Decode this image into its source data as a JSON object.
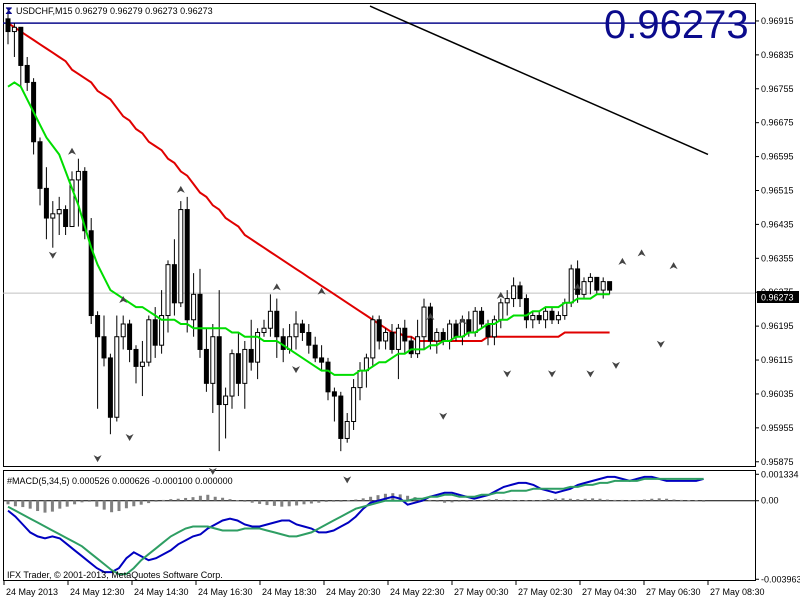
{
  "header": {
    "symbol_line": "USDCHF,M15  0.96279 0.96279 0.96273 0.96273",
    "big_price": "0.96273"
  },
  "macd": {
    "label": "#MACD(5,34,5) 0.000526 0.000626 -0.000100 0.000000",
    "axis_labels": [
      "0.001334",
      "0.00",
      "-0.003963"
    ]
  },
  "footer": {
    "copyright": "IFX Trader, © 2001-2013, MetaQuotes Software Corp."
  },
  "chart_data": {
    "type": "candlestick",
    "price_axis": {
      "ticks": [
        0.96915,
        0.96835,
        0.96755,
        0.96675,
        0.96595,
        0.96515,
        0.96435,
        0.96355,
        0.96275,
        0.96195,
        0.96115,
        0.96035,
        0.95955,
        0.95875
      ],
      "ylim": [
        0.95865,
        0.96955
      ],
      "current_price": 0.96273,
      "current_label": "0.96273"
    },
    "time_labels": [
      "24 May 2013",
      "24 May 12:30",
      "24 May 14:30",
      "24 May 16:30",
      "24 May 18:30",
      "24 May 20:30",
      "24 May 22:30",
      "27 May 00:30",
      "27 May 02:30",
      "27 May 04:30",
      "27 May 06:30",
      "27 May 08:30"
    ],
    "candles": [
      [
        0.9692,
        0.9694,
        0.9686,
        0.9689
      ],
      [
        0.9689,
        0.9691,
        0.9683,
        0.969
      ],
      [
        0.969,
        0.969,
        0.9676,
        0.9681
      ],
      [
        0.9681,
        0.9683,
        0.9675,
        0.9677
      ],
      [
        0.9677,
        0.9678,
        0.966,
        0.9663
      ],
      [
        0.9663,
        0.9664,
        0.9648,
        0.9652
      ],
      [
        0.9652,
        0.9657,
        0.964,
        0.9645
      ],
      [
        0.9645,
        0.9649,
        0.9638,
        0.9646
      ],
      [
        0.9646,
        0.965,
        0.9641,
        0.9647
      ],
      [
        0.9647,
        0.9648,
        0.9641,
        0.9643
      ],
      [
        0.9643,
        0.9656,
        0.9643,
        0.9654
      ],
      [
        0.9654,
        0.9659,
        0.9643,
        0.9656
      ],
      [
        0.9656,
        0.9657,
        0.964,
        0.9642
      ],
      [
        0.9642,
        0.9645,
        0.962,
        0.9622
      ],
      [
        0.9622,
        0.9623,
        0.96,
        0.9617
      ],
      [
        0.9617,
        0.9622,
        0.961,
        0.9612
      ],
      [
        0.9612,
        0.9613,
        0.9594,
        0.9598
      ],
      [
        0.9598,
        0.9622,
        0.9597,
        0.9617
      ],
      [
        0.9617,
        0.9622,
        0.9614,
        0.962
      ],
      [
        0.962,
        0.9621,
        0.9611,
        0.9614
      ],
      [
        0.9614,
        0.9615,
        0.9606,
        0.961
      ],
      [
        0.961,
        0.9616,
        0.9603,
        0.9611
      ],
      [
        0.9611,
        0.9622,
        0.961,
        0.9621
      ],
      [
        0.9621,
        0.9624,
        0.9612,
        0.9615
      ],
      [
        0.9615,
        0.9628,
        0.9613,
        0.9622
      ],
      [
        0.9622,
        0.9635,
        0.9618,
        0.9634
      ],
      [
        0.9634,
        0.964,
        0.9622,
        0.9625
      ],
      [
        0.9625,
        0.9649,
        0.9624,
        0.9647
      ],
      [
        0.9647,
        0.965,
        0.9618,
        0.9621
      ],
      [
        0.9621,
        0.9632,
        0.9617,
        0.9627
      ],
      [
        0.9627,
        0.9633,
        0.9612,
        0.9614
      ],
      [
        0.9614,
        0.9619,
        0.9604,
        0.9606
      ],
      [
        0.9606,
        0.962,
        0.9599,
        0.9617
      ],
      [
        0.9617,
        0.9628,
        0.959,
        0.9601
      ],
      [
        0.9601,
        0.9605,
        0.9593,
        0.9603
      ],
      [
        0.9603,
        0.9614,
        0.96,
        0.9613
      ],
      [
        0.9613,
        0.9618,
        0.9603,
        0.9606
      ],
      [
        0.9606,
        0.9616,
        0.96,
        0.9614
      ],
      [
        0.9614,
        0.9621,
        0.9609,
        0.9611
      ],
      [
        0.9611,
        0.9619,
        0.9607,
        0.9618
      ],
      [
        0.9618,
        0.9621,
        0.9617,
        0.9619
      ],
      [
        0.9619,
        0.9627,
        0.9617,
        0.9623
      ],
      [
        0.9623,
        0.9626,
        0.9612,
        0.9617
      ],
      [
        0.9617,
        0.9619,
        0.9611,
        0.9614
      ],
      [
        0.9614,
        0.962,
        0.9613,
        0.9617
      ],
      [
        0.9617,
        0.9623,
        0.9614,
        0.962
      ],
      [
        0.962,
        0.9621,
        0.9616,
        0.9618
      ],
      [
        0.9618,
        0.962,
        0.9613,
        0.9615
      ],
      [
        0.9615,
        0.9617,
        0.9611,
        0.9612
      ],
      [
        0.9612,
        0.9615,
        0.9609,
        0.9611
      ],
      [
        0.9611,
        0.9612,
        0.9602,
        0.9604
      ],
      [
        0.9604,
        0.9605,
        0.9597,
        0.9603
      ],
      [
        0.9603,
        0.9604,
        0.959,
        0.9593
      ],
      [
        0.9593,
        0.9599,
        0.9592,
        0.9597
      ],
      [
        0.9597,
        0.9607,
        0.9595,
        0.9605
      ],
      [
        0.9605,
        0.9611,
        0.9602,
        0.9609
      ],
      [
        0.9609,
        0.9613,
        0.9605,
        0.9612
      ],
      [
        0.9612,
        0.9622,
        0.961,
        0.9621
      ],
      [
        0.9621,
        0.9622,
        0.9614,
        0.9616
      ],
      [
        0.9616,
        0.9619,
        0.9614,
        0.9618
      ],
      [
        0.9618,
        0.962,
        0.9613,
        0.9614
      ],
      [
        0.9614,
        0.962,
        0.9607,
        0.9619
      ],
      [
        0.9619,
        0.9621,
        0.9613,
        0.9616
      ],
      [
        0.9616,
        0.9617,
        0.9612,
        0.9613
      ],
      [
        0.9613,
        0.9621,
        0.9612,
        0.9617
      ],
      [
        0.9617,
        0.9626,
        0.9614,
        0.9624
      ],
      [
        0.9624,
        0.9625,
        0.9614,
        0.9616
      ],
      [
        0.9616,
        0.9619,
        0.9613,
        0.9618
      ],
      [
        0.9618,
        0.9619,
        0.9615,
        0.9616
      ],
      [
        0.9616,
        0.9621,
        0.9614,
        0.962
      ],
      [
        0.962,
        0.9621,
        0.9616,
        0.9617
      ],
      [
        0.9617,
        0.9622,
        0.9615,
        0.9621
      ],
      [
        0.9621,
        0.9623,
        0.9617,
        0.9618
      ],
      [
        0.9618,
        0.9624,
        0.9617,
        0.9623
      ],
      [
        0.9623,
        0.9624,
        0.9619,
        0.962
      ],
      [
        0.962,
        0.9621,
        0.9615,
        0.9617
      ],
      [
        0.9617,
        0.9622,
        0.9615,
        0.9621
      ],
      [
        0.9621,
        0.9626,
        0.9619,
        0.9625
      ],
      [
        0.9625,
        0.9628,
        0.9622,
        0.9626
      ],
      [
        0.9626,
        0.9631,
        0.9624,
        0.9629
      ],
      [
        0.9629,
        0.963,
        0.9624,
        0.9626
      ],
      [
        0.9626,
        0.9627,
        0.9619,
        0.9621
      ],
      [
        0.9621,
        0.9623,
        0.9619,
        0.9622
      ],
      [
        0.9622,
        0.9623,
        0.962,
        0.9621
      ],
      [
        0.9621,
        0.9624,
        0.9619,
        0.9623
      ],
      [
        0.9623,
        0.9624,
        0.962,
        0.9621
      ],
      [
        0.9621,
        0.9623,
        0.962,
        0.9622
      ],
      [
        0.9622,
        0.9626,
        0.9621,
        0.9625
      ],
      [
        0.9625,
        0.9634,
        0.9624,
        0.9633
      ],
      [
        0.9633,
        0.9635,
        0.9625,
        0.9627
      ],
      [
        0.9627,
        0.9631,
        0.9626,
        0.963
      ],
      [
        0.963,
        0.9632,
        0.9627,
        0.9631
      ],
      [
        0.9631,
        0.9631,
        0.9627,
        0.9628
      ],
      [
        0.9628,
        0.9631,
        0.9626,
        0.963
      ],
      [
        0.963,
        0.963,
        0.9627,
        0.9628
      ]
    ],
    "ma_fast": [
      0.9676,
      0.9677,
      0.9676,
      0.9673,
      0.967,
      0.9667,
      0.9664,
      0.9662,
      0.966,
      0.9656,
      0.9652,
      0.9648,
      0.9643,
      0.9638,
      0.9634,
      0.9631,
      0.9628,
      0.9627,
      0.9626,
      0.9625,
      0.9624,
      0.9624,
      0.9623,
      0.9622,
      0.9621,
      0.9621,
      0.9621,
      0.962,
      0.962,
      0.9619,
      0.9619,
      0.9619,
      0.9619,
      0.9619,
      0.9619,
      0.9618,
      0.9618,
      0.9617,
      0.9617,
      0.9617,
      0.9616,
      0.9616,
      0.9616,
      0.9615,
      0.9614,
      0.9613,
      0.9612,
      0.9611,
      0.961,
      0.9609,
      0.9609,
      0.9608,
      0.9608,
      0.9608,
      0.9608,
      0.9609,
      0.9609,
      0.961,
      0.9611,
      0.9611,
      0.9612,
      0.9613,
      0.9613,
      0.9614,
      0.9614,
      0.9614,
      0.9615,
      0.9615,
      0.9616,
      0.9616,
      0.9617,
      0.9617,
      0.9618,
      0.9618,
      0.9619,
      0.962,
      0.962,
      0.9621,
      0.9621,
      0.9622,
      0.9622,
      0.9622,
      0.9623,
      0.9623,
      0.9624,
      0.9624,
      0.9624,
      0.9625,
      0.9625,
      0.9626,
      0.9626,
      0.9626,
      0.9627,
      0.9627,
      0.9627
    ],
    "ma_slow": [
      0.9691,
      0.969,
      0.9689,
      0.9688,
      0.9687,
      0.9686,
      0.9685,
      0.9684,
      0.9683,
      0.9682,
      0.968,
      0.9679,
      0.9678,
      0.9677,
      0.9675,
      0.9674,
      0.9673,
      0.9671,
      0.9669,
      0.9668,
      0.9666,
      0.9665,
      0.9663,
      0.9662,
      0.9661,
      0.9659,
      0.9658,
      0.9656,
      0.9655,
      0.9653,
      0.9651,
      0.965,
      0.9648,
      0.9647,
      0.9645,
      0.9644,
      0.9643,
      0.9641,
      0.964,
      0.9639,
      0.9638,
      0.9637,
      0.9636,
      0.9635,
      0.9634,
      0.9633,
      0.9632,
      0.9631,
      0.963,
      0.9629,
      0.9628,
      0.9627,
      0.9626,
      0.9625,
      0.9624,
      0.9623,
      0.9622,
      0.9621,
      0.962,
      0.9619,
      0.9618,
      0.9618,
      0.9617,
      0.9617,
      0.9616,
      0.9616,
      0.9616,
      0.9616,
      0.9616,
      0.9616,
      0.9616,
      0.9616,
      0.9616,
      0.9616,
      0.9616,
      0.9617,
      0.9617,
      0.9617,
      0.9617,
      0.9617,
      0.9617,
      0.9617,
      0.9617,
      0.9617,
      0.9617,
      0.9617,
      0.9617,
      0.9618,
      0.9618,
      0.9618,
      0.9618,
      0.9618,
      0.9618,
      0.9618,
      0.9618
    ],
    "ma_long_endpoints": [
      [
        0.9695,
        0.966
      ]
    ],
    "hline_price": 0.9691,
    "fractals_up": [
      [
        10,
        0.9659
      ],
      [
        18,
        0.9624
      ],
      [
        27,
        0.965
      ],
      [
        42,
        0.9627
      ],
      [
        49,
        0.9626
      ],
      [
        66,
        0.962
      ],
      [
        71,
        0.9619
      ],
      [
        77,
        0.9625
      ],
      [
        89,
        0.9627
      ],
      [
        96,
        0.9633
      ],
      [
        99,
        0.9635
      ],
      [
        104,
        0.9632
      ]
    ],
    "fractals_down": [
      [
        7,
        0.9638
      ],
      [
        14,
        0.959
      ],
      [
        19,
        0.9595
      ],
      [
        32,
        0.9587
      ],
      [
        45,
        0.9611
      ],
      [
        53,
        0.9585
      ],
      [
        68,
        0.96
      ],
      [
        78,
        0.961
      ],
      [
        85,
        0.961
      ],
      [
        91,
        0.961
      ],
      [
        95,
        0.9612
      ],
      [
        102,
        0.9617
      ]
    ],
    "macd_histogram": [
      -0.00018,
      -0.00028,
      -0.00032,
      -0.0004,
      -0.00052,
      -0.0006,
      -0.00055,
      -0.0004,
      -0.0003,
      -0.00018,
      -8e-05,
      -5e-05,
      -0.0003,
      -0.00045,
      -0.00058,
      -0.00052,
      -0.00038,
      -0.00028,
      -0.0002,
      -0.00012,
      -5e-05,
      4e-05,
      8e-05,
      0.0001,
      0.00014,
      0.00018,
      0.00025,
      0.0003,
      0.0002,
      0.00015,
      8e-05,
      2e-05,
      -4e-05,
      -0.0001,
      -0.00016,
      -0.00022,
      -0.00026,
      -0.0003,
      -0.00028,
      -0.00024,
      -0.00018,
      -0.00014,
      -0.0001,
      -6e-05,
      -4e-05,
      -2e-05,
      2e-05,
      6e-05,
      0.00012,
      0.0002,
      0.00028,
      0.00035,
      0.00038,
      0.00032,
      0.00025,
      0.00018,
      0.0001,
      4e-05,
      -4e-05,
      -0.0001,
      -8e-05,
      -4e-05,
      0.0,
      2e-05,
      4e-05,
      6e-05,
      8e-05,
      5e-05,
      4e-05,
      2e-05,
      2e-05,
      1e-05,
      4e-05,
      8e-05,
      0.0001,
      0.00012,
      0.0001,
      8e-05,
      0.0001,
      0.00012,
      0.0001,
      6e-05,
      4e-05,
      4e-05,
      2e-05,
      4e-05,
      6e-05,
      0.0001,
      0.00012,
      0.0001,
      6e-05,
      4e-05,
      2e-05,
      1e-05,
      -1e-05
    ],
    "macd_main": [
      -0.0005,
      -0.0008,
      -0.0012,
      -0.0016,
      -0.0018,
      -0.0019,
      -0.0018,
      -0.0019,
      -0.0022,
      -0.0025,
      -0.0028,
      -0.0031,
      -0.0034,
      -0.0036,
      -0.0036,
      -0.0034,
      -0.0029,
      -0.0026,
      -0.0028,
      -0.003,
      -0.0029,
      -0.0027,
      -0.0025,
      -0.0022,
      -0.002,
      -0.0018,
      -0.0017,
      -0.0014,
      -0.0012,
      -0.001,
      -0.0009,
      -0.001,
      -0.0012,
      -0.0013,
      -0.0013,
      -0.0012,
      -0.0011,
      -0.001,
      -0.001,
      -0.0012,
      -0.0013,
      -0.0014,
      -0.0016,
      -0.0016,
      -0.0015,
      -0.0013,
      -0.0011,
      -0.0008,
      -0.0004,
      -0.0001,
      0.0,
      0.0001,
      0.0002,
      0.0001,
      -0.0002,
      -0.0001,
      0.0,
      0.0002,
      0.0003,
      0.0004,
      0.0004,
      0.0003,
      0.0002,
      0.0001,
      0.0002,
      0.0003,
      0.0005,
      0.0007,
      0.0008,
      0.0009,
      0.0009,
      0.0008,
      0.0006,
      0.0005,
      0.0004,
      0.0005,
      0.0006,
      0.0008,
      0.0009,
      0.001,
      0.0011,
      0.0012,
      0.0012,
      0.0011,
      0.001,
      0.0011,
      0.0012,
      0.0012,
      0.0011,
      0.001,
      0.001,
      0.001,
      0.001,
      0.001,
      0.0011
    ],
    "macd_signal": [
      -0.0003,
      -0.0005,
      -0.0007,
      -0.0009,
      -0.0011,
      -0.0013,
      -0.0015,
      -0.0017,
      -0.0019,
      -0.0021,
      -0.0023,
      -0.0026,
      -0.0029,
      -0.0032,
      -0.0035,
      -0.0037,
      -0.0037,
      -0.0034,
      -0.003,
      -0.0027,
      -0.0024,
      -0.0021,
      -0.0018,
      -0.0016,
      -0.0014,
      -0.0013,
      -0.0013,
      -0.0013,
      -0.0014,
      -0.0015,
      -0.0015,
      -0.0015,
      -0.0014,
      -0.0014,
      -0.0014,
      -0.0015,
      -0.0016,
      -0.0017,
      -0.0018,
      -0.0018,
      -0.0017,
      -0.0016,
      -0.0014,
      -0.0012,
      -0.001,
      -0.0008,
      -0.0006,
      -0.0004,
      -0.0003,
      -0.0002,
      -0.0001,
      0.0,
      0.0,
      0.0,
      0.0,
      0.0001,
      0.0001,
      0.0002,
      0.0002,
      0.0003,
      0.0003,
      0.0002,
      0.0002,
      0.0002,
      0.0003,
      0.0003,
      0.0004,
      0.0004,
      0.0005,
      0.0005,
      0.0005,
      0.0006,
      0.0006,
      0.0006,
      0.0006,
      0.0006,
      0.0007,
      0.0007,
      0.0008,
      0.0008,
      0.0009,
      0.0009,
      0.001,
      0.001,
      0.001,
      0.001,
      0.0011,
      0.0011,
      0.0011,
      0.0011,
      0.0011,
      0.0011,
      0.0011,
      0.0011,
      0.0011
    ],
    "macd_ylim": [
      -0.004,
      0.0015
    ],
    "colors": {
      "candle": "#000000",
      "ma_fast": "#00dd00",
      "ma_slow": "#e00000",
      "ma_long": "#000000",
      "hline": "#0b0b8c",
      "current_hline": "#c0c0c0",
      "macd_histogram": "#808080",
      "macd_main": "#0000c0",
      "macd_signal": "#2e9e63",
      "big_price": "#0b0b8c"
    }
  }
}
